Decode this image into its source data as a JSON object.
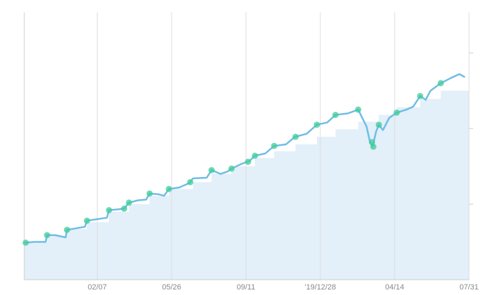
{
  "chart_data": {
    "type": "line",
    "xlim": [
      0,
      646
    ],
    "ylim": [
      0,
      37
    ],
    "xticks": [
      {
        "value": 106,
        "label": "02/07"
      },
      {
        "value": 214,
        "label": "05/26"
      },
      {
        "value": 322,
        "label": "09/11"
      },
      {
        "value": 430,
        "label": "'19/12/28"
      },
      {
        "value": 538,
        "label": "04/14"
      },
      {
        "value": 646,
        "label": "07/31"
      }
    ],
    "yticks": [
      10,
      20,
      30
    ],
    "grid": true,
    "steps": {
      "color": "#e3eff9",
      "x": [
        0,
        33,
        62,
        91,
        123,
        152,
        182,
        210,
        245,
        272,
        301,
        335,
        363,
        394,
        425,
        452,
        485,
        515,
        541,
        575,
        605
      ],
      "values": [
        4.9,
        5.8,
        6.7,
        7.6,
        9.0,
        10.0,
        11.1,
        12.0,
        12.9,
        14.0,
        15.0,
        16.1,
        17.0,
        17.9,
        18.9,
        19.9,
        20.9,
        21.8,
        22.8,
        23.9,
        25.0
      ]
    },
    "line": {
      "color": "#6fbde6",
      "x": [
        0,
        15,
        31,
        33,
        45,
        60,
        62,
        75,
        88,
        91,
        105,
        120,
        123,
        135,
        145,
        152,
        165,
        177,
        182,
        195,
        203,
        210,
        225,
        240,
        245,
        265,
        272,
        285,
        295,
        301,
        315,
        327,
        335,
        350,
        363,
        380,
        393,
        410,
        425,
        440,
        452,
        470,
        485,
        492,
        497,
        502,
        506,
        511,
        515,
        521,
        530,
        541,
        555,
        565,
        575,
        583,
        590,
        605,
        620,
        632,
        640
      ],
      "values": [
        4.9,
        5.0,
        5.0,
        5.9,
        5.9,
        5.6,
        6.6,
        6.8,
        7.0,
        7.8,
        8.0,
        8.2,
        9.2,
        9.3,
        9.4,
        10.2,
        10.5,
        10.6,
        11.4,
        11.3,
        11.1,
        12.0,
        12.2,
        12.8,
        13.4,
        13.5,
        14.5,
        14.0,
        14.3,
        14.7,
        15.3,
        15.7,
        16.4,
        16.7,
        17.7,
        17.9,
        18.9,
        19.3,
        20.5,
        20.8,
        21.8,
        22.0,
        22.5,
        21.2,
        20.3,
        18.3,
        17.6,
        19.6,
        20.5,
        19.8,
        21.4,
        22.1,
        22.5,
        22.9,
        24.3,
        23.8,
        25.0,
        26.0,
        26.7,
        27.2,
        26.8
      ]
    },
    "points": {
      "color": "#3dcc9a",
      "x": [
        2,
        33,
        62,
        91,
        123,
        145,
        152,
        182,
        210,
        241,
        272,
        301,
        325,
        335,
        363,
        394,
        425,
        452,
        485,
        505,
        507,
        515,
        541,
        575,
        605
      ],
      "values": [
        4.9,
        5.9,
        6.6,
        7.8,
        9.2,
        9.4,
        10.2,
        11.4,
        12.0,
        12.9,
        14.5,
        14.7,
        15.6,
        16.4,
        17.7,
        18.9,
        20.5,
        21.8,
        22.5,
        18.2,
        17.6,
        20.5,
        22.1,
        24.3,
        26.0
      ]
    }
  }
}
